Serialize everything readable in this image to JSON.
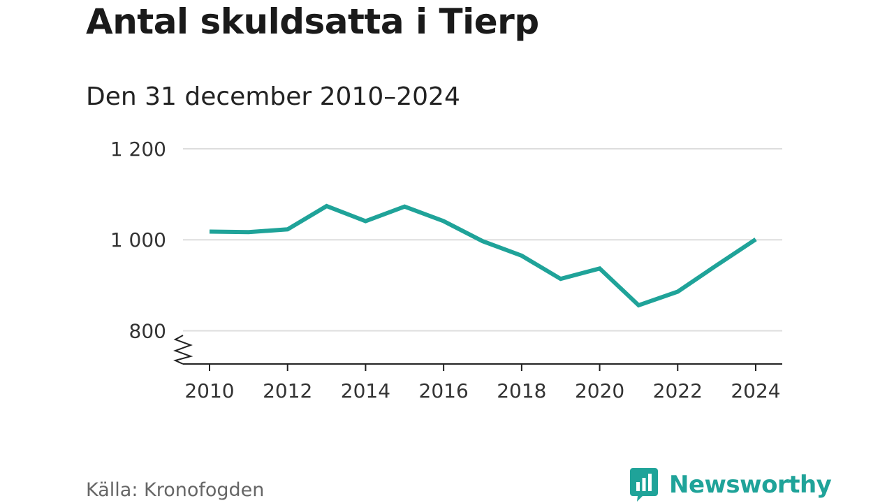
{
  "header": {
    "title": "Antal skuldsatta i Tierp",
    "subtitle": "Den 31 december 2010–2024"
  },
  "footer": {
    "source": "Källa: Kronofogden",
    "brand": "Newsworthy"
  },
  "colors": {
    "line": "#1fa399",
    "grid": "#dddddd",
    "axis": "#222222",
    "brand": "#1fa399"
  },
  "chart_data": {
    "type": "line",
    "title": "Antal skuldsatta i Tierp",
    "subtitle": "Den 31 december 2010–2024",
    "xlabel": "",
    "ylabel": "",
    "x": [
      2010,
      2011,
      2012,
      2013,
      2014,
      2015,
      2016,
      2017,
      2018,
      2019,
      2020,
      2021,
      2022,
      2023,
      2024
    ],
    "series": [
      {
        "name": "Antal skuldsatta",
        "values": [
          1018,
          1017,
          1023,
          1074,
          1041,
          1073,
          1041,
          997,
          965,
          914,
          937,
          856,
          886,
          944,
          1001
        ]
      }
    ],
    "xticks": [
      2010,
      2012,
      2014,
      2016,
      2018,
      2020,
      2022,
      2024
    ],
    "xtick_labels": [
      "2010",
      "2012",
      "2014",
      "2016",
      "2018",
      "2020",
      "2022",
      "2024"
    ],
    "yticks": [
      800,
      1000,
      1200
    ],
    "ytick_labels": [
      "800",
      "1 000",
      "1 200"
    ],
    "ylim": [
      727,
      1200
    ],
    "axis_break": true,
    "grid": true,
    "legend": "none"
  }
}
